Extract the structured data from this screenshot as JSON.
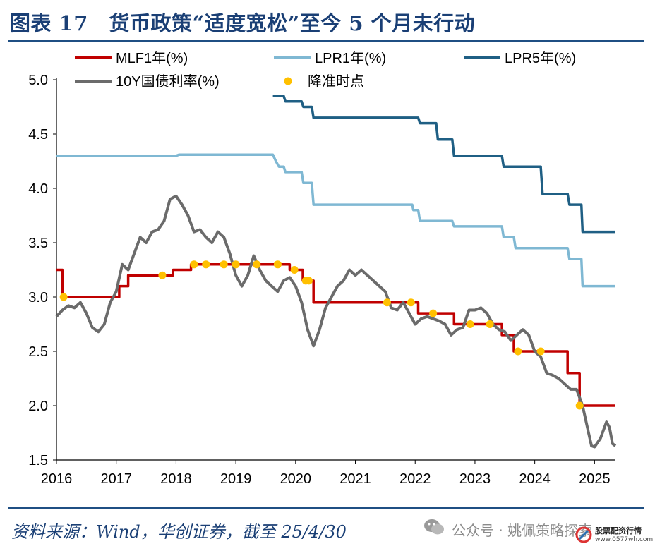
{
  "page": {
    "title": "图表 17　货币政策“适度宽松”至今 5 个月未行动",
    "source": "资料来源：Wind，华创证券，截至 25/4/30",
    "watermark": "公众号 · 姚佩策略探索",
    "badge_line1": "股票配资行情",
    "badge_line2": "www.0577wh.com"
  },
  "chart_data": {
    "type": "line",
    "xlabel": "",
    "ylabel": "",
    "xlim": [
      2016.0,
      2025.35
    ],
    "ylim": [
      1.5,
      5.0
    ],
    "yticks": [
      1.5,
      2.0,
      2.5,
      3.0,
      3.5,
      4.0,
      4.5,
      5.0
    ],
    "ytick_labels": [
      "1.5",
      "2.0",
      "2.5",
      "3.0",
      "3.5",
      "4.0",
      "4.5",
      "5.0"
    ],
    "xticks": [
      2016,
      2017,
      2018,
      2019,
      2020,
      2021,
      2022,
      2023,
      2024,
      2025
    ],
    "xtick_labels": [
      "2016",
      "2017",
      "2018",
      "2019",
      "2020",
      "2021",
      "2022",
      "2023",
      "2024",
      "2025"
    ],
    "grid": false,
    "legend_position": "top",
    "series": [
      {
        "name": "MLF1年(%)",
        "color": "#c00000",
        "kind": "step",
        "points": [
          [
            2016.0,
            3.25
          ],
          [
            2016.1,
            3.25
          ],
          [
            2016.1,
            3.0
          ],
          [
            2017.05,
            3.0
          ],
          [
            2017.05,
            3.1
          ],
          [
            2017.2,
            3.1
          ],
          [
            2017.2,
            3.2
          ],
          [
            2017.95,
            3.2
          ],
          [
            2017.95,
            3.25
          ],
          [
            2018.25,
            3.25
          ],
          [
            2018.25,
            3.3
          ],
          [
            2019.9,
            3.3
          ],
          [
            2019.9,
            3.25
          ],
          [
            2020.12,
            3.25
          ],
          [
            2020.12,
            3.15
          ],
          [
            2020.3,
            3.15
          ],
          [
            2020.3,
            2.95
          ],
          [
            2022.05,
            2.95
          ],
          [
            2022.05,
            2.85
          ],
          [
            2022.65,
            2.85
          ],
          [
            2022.65,
            2.75
          ],
          [
            2023.45,
            2.75
          ],
          [
            2023.45,
            2.65
          ],
          [
            2023.65,
            2.65
          ],
          [
            2023.65,
            2.5
          ],
          [
            2024.55,
            2.5
          ],
          [
            2024.55,
            2.3
          ],
          [
            2024.75,
            2.3
          ],
          [
            2024.75,
            2.0
          ],
          [
            2025.35,
            2.0
          ]
        ]
      },
      {
        "name": "LPR1年(%)",
        "color": "#7fb8d3",
        "kind": "step",
        "points": [
          [
            2016.0,
            4.3
          ],
          [
            2018.0,
            4.3
          ],
          [
            2018.05,
            4.31
          ],
          [
            2019.62,
            4.31
          ],
          [
            2019.67,
            4.25
          ],
          [
            2019.72,
            4.2
          ],
          [
            2019.8,
            4.2
          ],
          [
            2019.83,
            4.15
          ],
          [
            2019.92,
            4.15
          ],
          [
            2019.97,
            4.15
          ],
          [
            2020.1,
            4.15
          ],
          [
            2020.13,
            4.05
          ],
          [
            2020.27,
            4.05
          ],
          [
            2020.3,
            3.85
          ],
          [
            2021.95,
            3.85
          ],
          [
            2021.97,
            3.8
          ],
          [
            2022.05,
            3.8
          ],
          [
            2022.08,
            3.7
          ],
          [
            2022.62,
            3.7
          ],
          [
            2022.65,
            3.65
          ],
          [
            2023.45,
            3.65
          ],
          [
            2023.48,
            3.55
          ],
          [
            2023.65,
            3.55
          ],
          [
            2023.68,
            3.45
          ],
          [
            2024.55,
            3.45
          ],
          [
            2024.58,
            3.35
          ],
          [
            2024.78,
            3.35
          ],
          [
            2024.8,
            3.1
          ],
          [
            2025.35,
            3.1
          ]
        ]
      },
      {
        "name": "LPR5年(%)",
        "color": "#1f5f84",
        "kind": "step",
        "points": [
          [
            2019.62,
            4.85
          ],
          [
            2019.8,
            4.85
          ],
          [
            2019.83,
            4.8
          ],
          [
            2020.1,
            4.8
          ],
          [
            2020.13,
            4.75
          ],
          [
            2020.27,
            4.75
          ],
          [
            2020.3,
            4.65
          ],
          [
            2022.05,
            4.65
          ],
          [
            2022.08,
            4.6
          ],
          [
            2022.35,
            4.6
          ],
          [
            2022.38,
            4.45
          ],
          [
            2022.62,
            4.45
          ],
          [
            2022.65,
            4.3
          ],
          [
            2023.45,
            4.3
          ],
          [
            2023.48,
            4.2
          ],
          [
            2024.1,
            4.2
          ],
          [
            2024.13,
            3.95
          ],
          [
            2024.55,
            3.95
          ],
          [
            2024.58,
            3.85
          ],
          [
            2024.78,
            3.85
          ],
          [
            2024.8,
            3.6
          ],
          [
            2025.35,
            3.6
          ]
        ]
      },
      {
        "name": "10Y国债利率(%)",
        "color": "#6b6b6b",
        "kind": "line",
        "points": [
          [
            2016.0,
            2.82
          ],
          [
            2016.1,
            2.88
          ],
          [
            2016.2,
            2.92
          ],
          [
            2016.3,
            2.9
          ],
          [
            2016.4,
            2.95
          ],
          [
            2016.5,
            2.85
          ],
          [
            2016.6,
            2.72
          ],
          [
            2016.7,
            2.68
          ],
          [
            2016.8,
            2.75
          ],
          [
            2016.9,
            2.95
          ],
          [
            2017.0,
            3.05
          ],
          [
            2017.1,
            3.3
          ],
          [
            2017.2,
            3.25
          ],
          [
            2017.3,
            3.4
          ],
          [
            2017.4,
            3.55
          ],
          [
            2017.5,
            3.5
          ],
          [
            2017.6,
            3.6
          ],
          [
            2017.7,
            3.62
          ],
          [
            2017.8,
            3.7
          ],
          [
            2017.9,
            3.9
          ],
          [
            2018.0,
            3.93
          ],
          [
            2018.1,
            3.85
          ],
          [
            2018.2,
            3.75
          ],
          [
            2018.3,
            3.6
          ],
          [
            2018.4,
            3.62
          ],
          [
            2018.5,
            3.55
          ],
          [
            2018.6,
            3.5
          ],
          [
            2018.7,
            3.6
          ],
          [
            2018.8,
            3.55
          ],
          [
            2018.9,
            3.4
          ],
          [
            2019.0,
            3.2
          ],
          [
            2019.1,
            3.1
          ],
          [
            2019.2,
            3.2
          ],
          [
            2019.3,
            3.38
          ],
          [
            2019.4,
            3.25
          ],
          [
            2019.5,
            3.15
          ],
          [
            2019.6,
            3.1
          ],
          [
            2019.7,
            3.05
          ],
          [
            2019.8,
            3.15
          ],
          [
            2019.9,
            3.18
          ],
          [
            2020.0,
            3.1
          ],
          [
            2020.1,
            2.95
          ],
          [
            2020.2,
            2.7
          ],
          [
            2020.3,
            2.55
          ],
          [
            2020.4,
            2.7
          ],
          [
            2020.5,
            2.9
          ],
          [
            2020.6,
            3.0
          ],
          [
            2020.7,
            3.1
          ],
          [
            2020.8,
            3.15
          ],
          [
            2020.9,
            3.25
          ],
          [
            2021.0,
            3.2
          ],
          [
            2021.1,
            3.25
          ],
          [
            2021.2,
            3.2
          ],
          [
            2021.3,
            3.15
          ],
          [
            2021.4,
            3.1
          ],
          [
            2021.5,
            3.05
          ],
          [
            2021.6,
            2.9
          ],
          [
            2021.7,
            2.88
          ],
          [
            2021.8,
            2.95
          ],
          [
            2021.9,
            2.85
          ],
          [
            2022.0,
            2.75
          ],
          [
            2022.1,
            2.8
          ],
          [
            2022.2,
            2.82
          ],
          [
            2022.3,
            2.8
          ],
          [
            2022.4,
            2.78
          ],
          [
            2022.5,
            2.75
          ],
          [
            2022.6,
            2.65
          ],
          [
            2022.7,
            2.7
          ],
          [
            2022.8,
            2.72
          ],
          [
            2022.9,
            2.88
          ],
          [
            2023.0,
            2.88
          ],
          [
            2023.1,
            2.9
          ],
          [
            2023.2,
            2.85
          ],
          [
            2023.3,
            2.75
          ],
          [
            2023.4,
            2.7
          ],
          [
            2023.5,
            2.68
          ],
          [
            2023.6,
            2.6
          ],
          [
            2023.7,
            2.65
          ],
          [
            2023.8,
            2.7
          ],
          [
            2023.9,
            2.65
          ],
          [
            2024.0,
            2.5
          ],
          [
            2024.1,
            2.45
          ],
          [
            2024.2,
            2.3
          ],
          [
            2024.3,
            2.28
          ],
          [
            2024.4,
            2.25
          ],
          [
            2024.5,
            2.2
          ],
          [
            2024.6,
            2.15
          ],
          [
            2024.7,
            2.15
          ],
          [
            2024.8,
            2.0
          ],
          [
            2024.9,
            1.75
          ],
          [
            2024.95,
            1.63
          ],
          [
            2025.0,
            1.62
          ],
          [
            2025.1,
            1.7
          ],
          [
            2025.2,
            1.85
          ],
          [
            2025.25,
            1.8
          ],
          [
            2025.3,
            1.65
          ],
          [
            2025.35,
            1.63
          ]
        ]
      },
      {
        "name": "降准时点",
        "color": "#ffc000",
        "kind": "dots",
        "points": [
          [
            2016.12,
            3.0
          ],
          [
            2017.77,
            3.2
          ],
          [
            2018.3,
            3.3
          ],
          [
            2018.5,
            3.3
          ],
          [
            2018.8,
            3.3
          ],
          [
            2019.0,
            3.3
          ],
          [
            2019.35,
            3.3
          ],
          [
            2019.7,
            3.3
          ],
          [
            2019.98,
            3.25
          ],
          [
            2020.17,
            3.15
          ],
          [
            2020.22,
            3.15
          ],
          [
            2021.53,
            2.95
          ],
          [
            2021.93,
            2.95
          ],
          [
            2022.3,
            2.85
          ],
          [
            2022.92,
            2.75
          ],
          [
            2023.25,
            2.75
          ],
          [
            2023.72,
            2.5
          ],
          [
            2024.1,
            2.5
          ],
          [
            2024.75,
            2.0
          ]
        ]
      }
    ]
  }
}
